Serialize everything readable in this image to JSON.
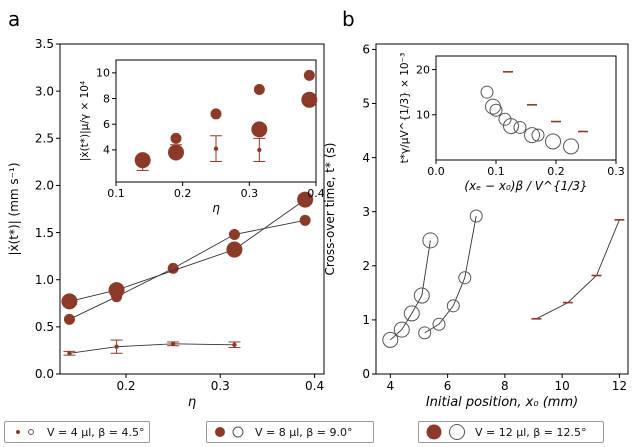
{
  "chart_data": [
    {
      "panel_label": "a",
      "type": "scatter",
      "xlabel": "η",
      "ylabel": "|ẋ(t*)|  (mm s⁻¹)",
      "xlim": [
        0.13,
        0.41
      ],
      "ylim": [
        0.0,
        3.5
      ],
      "xticks": [
        "0.2",
        "0.3",
        "0.4"
      ],
      "xtick_values": [
        0.2,
        0.3,
        0.4
      ],
      "yticks": [
        "0.0",
        "0.5",
        "1.0",
        "1.5",
        "2.0",
        "2.5",
        "3.0",
        "3.5"
      ],
      "ytick_values": [
        0.0,
        0.5,
        1.0,
        1.5,
        2.0,
        2.5,
        3.0,
        3.5
      ],
      "series": [
        {
          "key": "v4",
          "marker": "small-filled",
          "line": true,
          "x": [
            0.14,
            0.19,
            0.25,
            0.315
          ],
          "y": [
            0.22,
            0.29,
            0.32,
            0.31
          ],
          "yerr": [
            0.02,
            0.07,
            0.02,
            0.03
          ]
        },
        {
          "key": "v8",
          "marker": "medium-filled",
          "line": true,
          "x": [
            0.14,
            0.19,
            0.25,
            0.315,
            0.39
          ],
          "y": [
            0.58,
            0.82,
            1.12,
            1.48,
            1.63
          ],
          "yerr": [
            0,
            0,
            0,
            0,
            0
          ]
        },
        {
          "key": "v12",
          "marker": "large-filled",
          "line": true,
          "x": [
            0.14,
            0.19,
            0.315,
            0.39
          ],
          "y": [
            0.77,
            0.89,
            1.32,
            1.85
          ],
          "yerr": [
            0,
            0,
            0,
            0
          ]
        }
      ],
      "inset": {
        "xlabel": "η",
        "ylabel": "|ẋ(t*)|μ/γ × 10⁴",
        "xlim": [
          0.1,
          0.4
        ],
        "ylim": [
          1.5,
          11
        ],
        "xticks": [
          "0.1",
          "0.2",
          "0.3",
          "0.4"
        ],
        "xtick_values": [
          0.1,
          0.2,
          0.3,
          0.4
        ],
        "yticks": [
          "4",
          "6",
          "8",
          "10"
        ],
        "ytick_values": [
          4,
          6,
          8,
          10
        ],
        "series": [
          {
            "key": "v4",
            "marker": "small-filled",
            "x": [
              0.14,
              0.19,
              0.25,
              0.315
            ],
            "y": [
              3.0,
              4.0,
              4.1,
              4.0
            ],
            "yerr": [
              0.6,
              0.4,
              1.0,
              0.9
            ]
          },
          {
            "key": "v8",
            "marker": "medium-filled",
            "x": [
              0.19,
              0.25,
              0.315,
              0.39
            ],
            "y": [
              4.9,
              6.8,
              8.7,
              9.8
            ],
            "yerr": [
              0,
              0,
              0,
              0
            ]
          },
          {
            "key": "v12",
            "marker": "large-filled",
            "x": [
              0.14,
              0.19,
              0.315,
              0.39
            ],
            "y": [
              3.2,
              3.8,
              5.6,
              7.9
            ],
            "yerr": [
              0,
              0,
              0,
              0
            ]
          }
        ]
      }
    },
    {
      "panel_label": "b",
      "type": "scatter",
      "xlabel": "Initial position, x₀  (mm)",
      "ylabel": "Cross-over time, t*  (s)",
      "xlim": [
        3.5,
        12.3
      ],
      "ylim": [
        0,
        6.1
      ],
      "xticks": [
        "4",
        "6",
        "8",
        "10",
        "12"
      ],
      "xtick_values": [
        4,
        6,
        8,
        10,
        12
      ],
      "yticks": [
        "0",
        "1",
        "2",
        "3",
        "4",
        "5",
        "6"
      ],
      "ytick_values": [
        0,
        1,
        2,
        3,
        4,
        5,
        6
      ],
      "series": [
        {
          "key": "v4",
          "marker": "dash",
          "line": true,
          "x": [
            9.1,
            10.2,
            11.2,
            12.0
          ],
          "y": [
            1.02,
            1.32,
            1.82,
            2.85
          ]
        },
        {
          "key": "v8",
          "marker": "medium-open",
          "line": true,
          "x": [
            5.2,
            5.7,
            6.2,
            6.6,
            7.0
          ],
          "y": [
            0.76,
            0.92,
            1.26,
            1.78,
            2.92
          ]
        },
        {
          "key": "v12",
          "marker": "large-open",
          "line": true,
          "x": [
            4.0,
            4.4,
            4.75,
            5.1,
            5.4
          ],
          "y": [
            0.63,
            0.82,
            1.12,
            1.45,
            2.47
          ]
        }
      ],
      "inset": {
        "xlabel": "(xₑ − x₀)β / V^{1/3}",
        "ylabel": "t*γ/μV^{1/3} × 10⁻³",
        "xlim": [
          0.0,
          0.3
        ],
        "ylim": [
          0,
          23
        ],
        "xticks": [
          "0.0",
          "0.1",
          "0.2",
          "0.3"
        ],
        "xtick_values": [
          0.0,
          0.1,
          0.2,
          0.3
        ],
        "yticks": [
          "10",
          "20"
        ],
        "ytick_values": [
          10,
          20
        ],
        "series": [
          {
            "key": "v4",
            "marker": "dash",
            "x": [
              0.12,
              0.16,
              0.2,
              0.245
            ],
            "y": [
              19.5,
              12.2,
              8.5,
              6.3
            ]
          },
          {
            "key": "v8",
            "marker": "medium-open",
            "x": [
              0.085,
              0.1,
              0.115,
              0.14,
              0.17
            ],
            "y": [
              15.0,
              11.0,
              9.0,
              7.2,
              5.5
            ]
          },
          {
            "key": "v12",
            "marker": "large-open",
            "x": [
              0.095,
              0.125,
              0.16,
              0.195,
              0.225
            ],
            "y": [
              11.8,
              7.5,
              5.5,
              4.1,
              3.0
            ]
          }
        ]
      }
    }
  ],
  "legend": [
    {
      "key": "v4",
      "label": "V = 4 μl, β = 4.5°"
    },
    {
      "key": "v8",
      "label": "V = 8 μl, β = 9.0°"
    },
    {
      "key": "v12",
      "label": "V = 12 μl, β = 12.5°"
    }
  ],
  "colors": {
    "marker": "#8b3a2a",
    "line": "#333333",
    "open": "#555555",
    "axis": "#000000"
  }
}
